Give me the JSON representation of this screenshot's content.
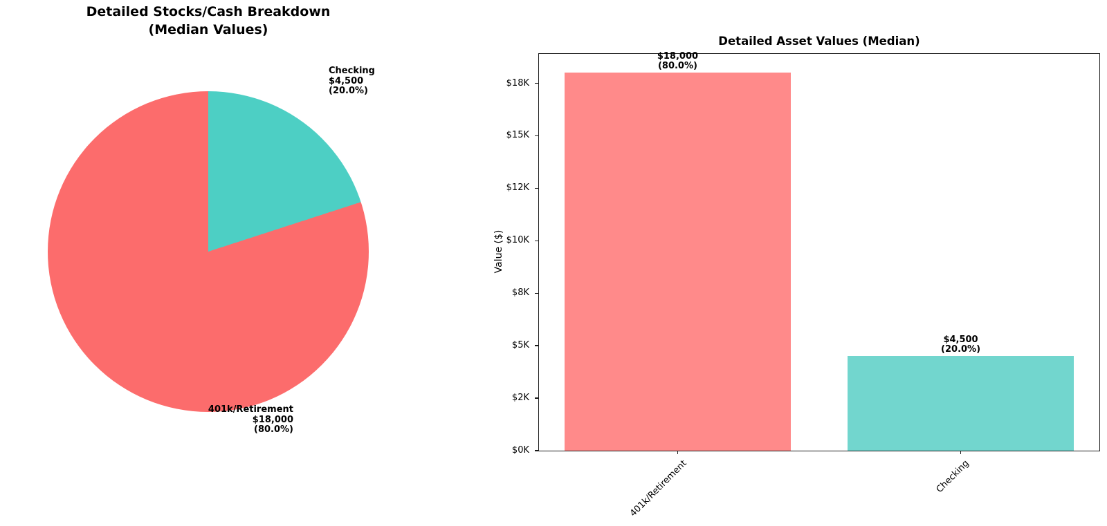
{
  "colors": {
    "background": "#ffffff",
    "text": "#000000",
    "axis": "#1a1a1a",
    "pie_retirement": "#FC6C6C",
    "pie_checking": "#4DCFC4",
    "bar_retirement": "#FF8A8A",
    "bar_checking": "#72D6CE"
  },
  "chart_data": [
    {
      "type": "pie",
      "title": "Detailed Stocks/Cash Breakdown (Median Values)",
      "title_lines": [
        "Detailed Stocks/Cash Breakdown",
        "(Median Values)"
      ],
      "start_angle_deg": 90,
      "direction": "counterclockwise",
      "slices": [
        {
          "label": "401k/Retirement",
          "value": 18000,
          "value_display": "$18,000",
          "pct": 80.0,
          "pct_display": "(80.0%)",
          "color": "#FC6C6C"
        },
        {
          "label": "Checking",
          "value": 4500,
          "value_display": "$4,500",
          "pct": 20.0,
          "pct_display": "(20.0%)",
          "color": "#4DCFC4"
        }
      ]
    },
    {
      "type": "bar",
      "title": "Detailed Asset Values (Median)",
      "ylabel": "Value ($)",
      "xlabel": "",
      "categories": [
        "401k/Retirement",
        "Checking"
      ],
      "values": [
        18000,
        4500
      ],
      "bar_colors": [
        "#FF8A8A",
        "#72D6CE"
      ],
      "bar_value_labels": [
        [
          "$18,000",
          "(80.0%)"
        ],
        [
          "$4,500",
          "(20.0%)"
        ]
      ],
      "ylim": [
        0,
        18900
      ],
      "yticks": [
        {
          "value": 0,
          "label": "$0K"
        },
        {
          "value": 2500,
          "label": "$2K"
        },
        {
          "value": 5000,
          "label": "$5K"
        },
        {
          "value": 7500,
          "label": "$8K"
        },
        {
          "value": 10000,
          "label": "$10K"
        },
        {
          "value": 12500,
          "label": "$12K"
        },
        {
          "value": 15000,
          "label": "$15K"
        },
        {
          "value": 17500,
          "label": "$18K"
        }
      ],
      "x_tick_rotation_deg": 45,
      "grid": false
    }
  ]
}
